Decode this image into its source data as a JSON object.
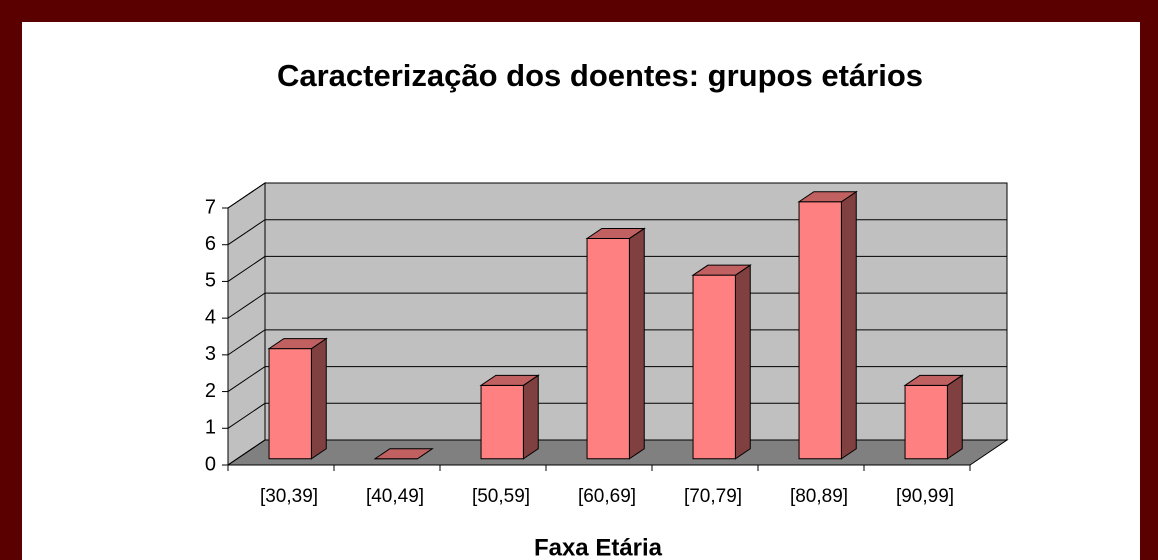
{
  "chart_data": {
    "type": "bar3d",
    "title": "Caracterização dos doentes: grupos etários",
    "categories": [
      "[30,39]",
      "[40,49]",
      "[50,59]",
      "[60,69]",
      "[70,79]",
      "[80,89]",
      "[90,99]"
    ],
    "values": [
      3,
      0,
      2,
      6,
      5,
      7,
      2
    ],
    "color": "#ff8080",
    "x_label": "Faxa Etária",
    "ylim": [
      0,
      7
    ],
    "yticks": [
      0,
      1,
      2,
      3,
      4,
      5,
      6,
      7
    ],
    "grid": true
  }
}
